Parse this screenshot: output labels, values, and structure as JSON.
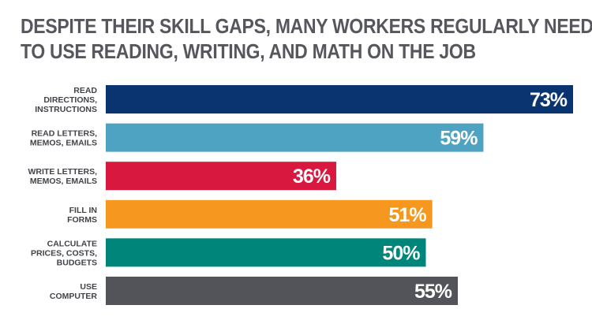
{
  "title": {
    "line1": "DESPITE THEIR SKILL GAPS, MANY WORKERS REGULARLY NEED",
    "line2": "TO USE READING, WRITING, AND MATH ON THE JOB"
  },
  "chart_data": {
    "type": "bar",
    "orientation": "horizontal",
    "title": "DESPITE THEIR SKILL GAPS, MANY WORKERS REGULARLY NEED TO USE READING, WRITING, AND MATH ON THE JOB",
    "categories": [
      "READ DIRECTIONS, INSTRUCTIONS",
      "READ LETTERS, MEMOS, EMAILS",
      "WRITE LETTERS, MEMOS, EMAILS",
      "FILL IN FORMS",
      "CALCULATE PRICES, COSTS, BUDGETS",
      "USE COMPUTER"
    ],
    "category_lines": [
      [
        "READ",
        "DIRECTIONS,",
        "INSTRUCTIONS"
      ],
      [
        "READ LETTERS,",
        "MEMOS, EMAILS"
      ],
      [
        "WRITE LETTERS,",
        "MEMOS, EMAILS"
      ],
      [
        "FILL IN",
        "FORMS"
      ],
      [
        "CALCULATE",
        "PRICES, COSTS,",
        "BUDGETS"
      ],
      [
        "USE",
        "COMPUTER"
      ]
    ],
    "values": [
      73,
      59,
      36,
      51,
      50,
      55
    ],
    "value_labels": [
      "73%",
      "59%",
      "36%",
      "51%",
      "50%",
      "55%"
    ],
    "colors": [
      "#0a3470",
      "#4fa3c2",
      "#d8183e",
      "#f6981f",
      "#00857a",
      "#52545a"
    ],
    "xlim": [
      0,
      73
    ],
    "grid": false,
    "legend": "none"
  }
}
